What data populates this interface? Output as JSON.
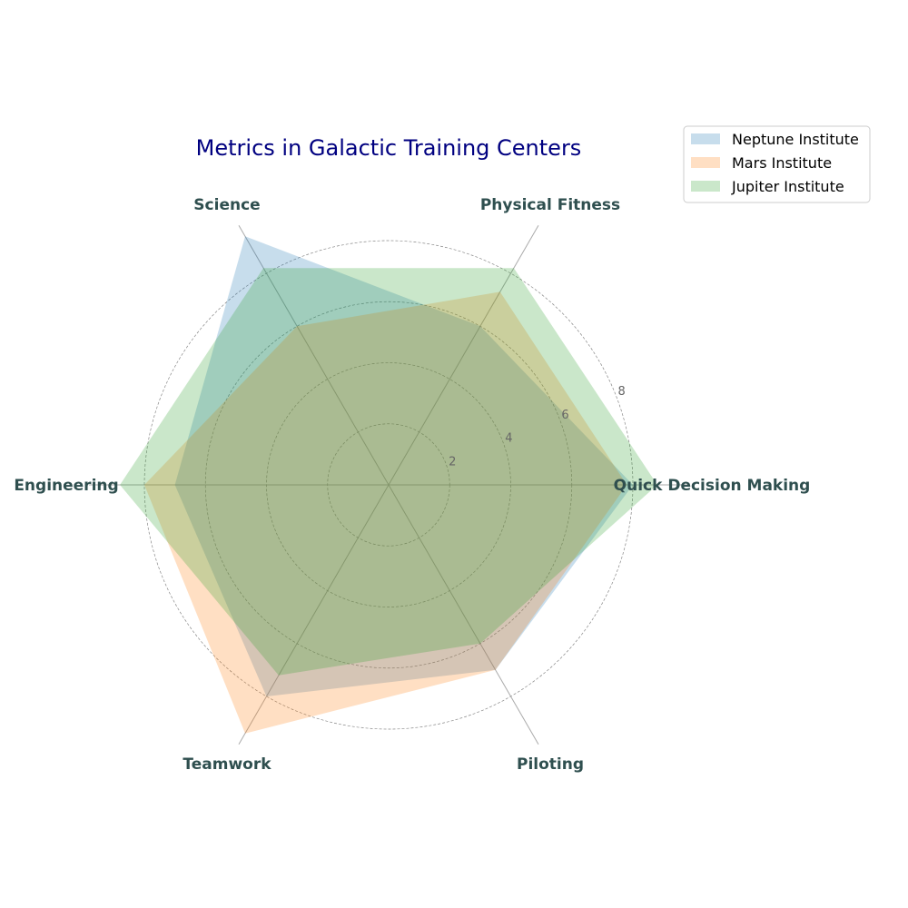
{
  "chart_data": {
    "type": "radar",
    "title": "Metrics in Galactic Training Centers",
    "categories": [
      "Quick Decision Making",
      "Physical Fitness",
      "Science",
      "Engineering",
      "Teamwork",
      "Piloting"
    ],
    "rlim": [
      0,
      8
    ],
    "r_ticks": [
      2,
      4,
      6,
      8
    ],
    "r_tick_labels": [
      "2",
      "4",
      "6",
      "8"
    ],
    "grid": true,
    "legend_position": "top-right",
    "series": [
      {
        "name": "Neptune Institute",
        "color": "#1f77b4",
        "values": [
          8.0,
          6.0,
          9.4,
          7.0,
          8.0,
          7.0
        ]
      },
      {
        "name": "Mars Institute",
        "color": "#ff7f0e",
        "values": [
          7.8,
          7.3,
          6.0,
          8.0,
          9.4,
          7.0
        ]
      },
      {
        "name": "Jupiter Institute",
        "color": "#2ca02c",
        "values": [
          8.8,
          8.2,
          8.2,
          8.8,
          7.2,
          6.0
        ]
      }
    ]
  }
}
